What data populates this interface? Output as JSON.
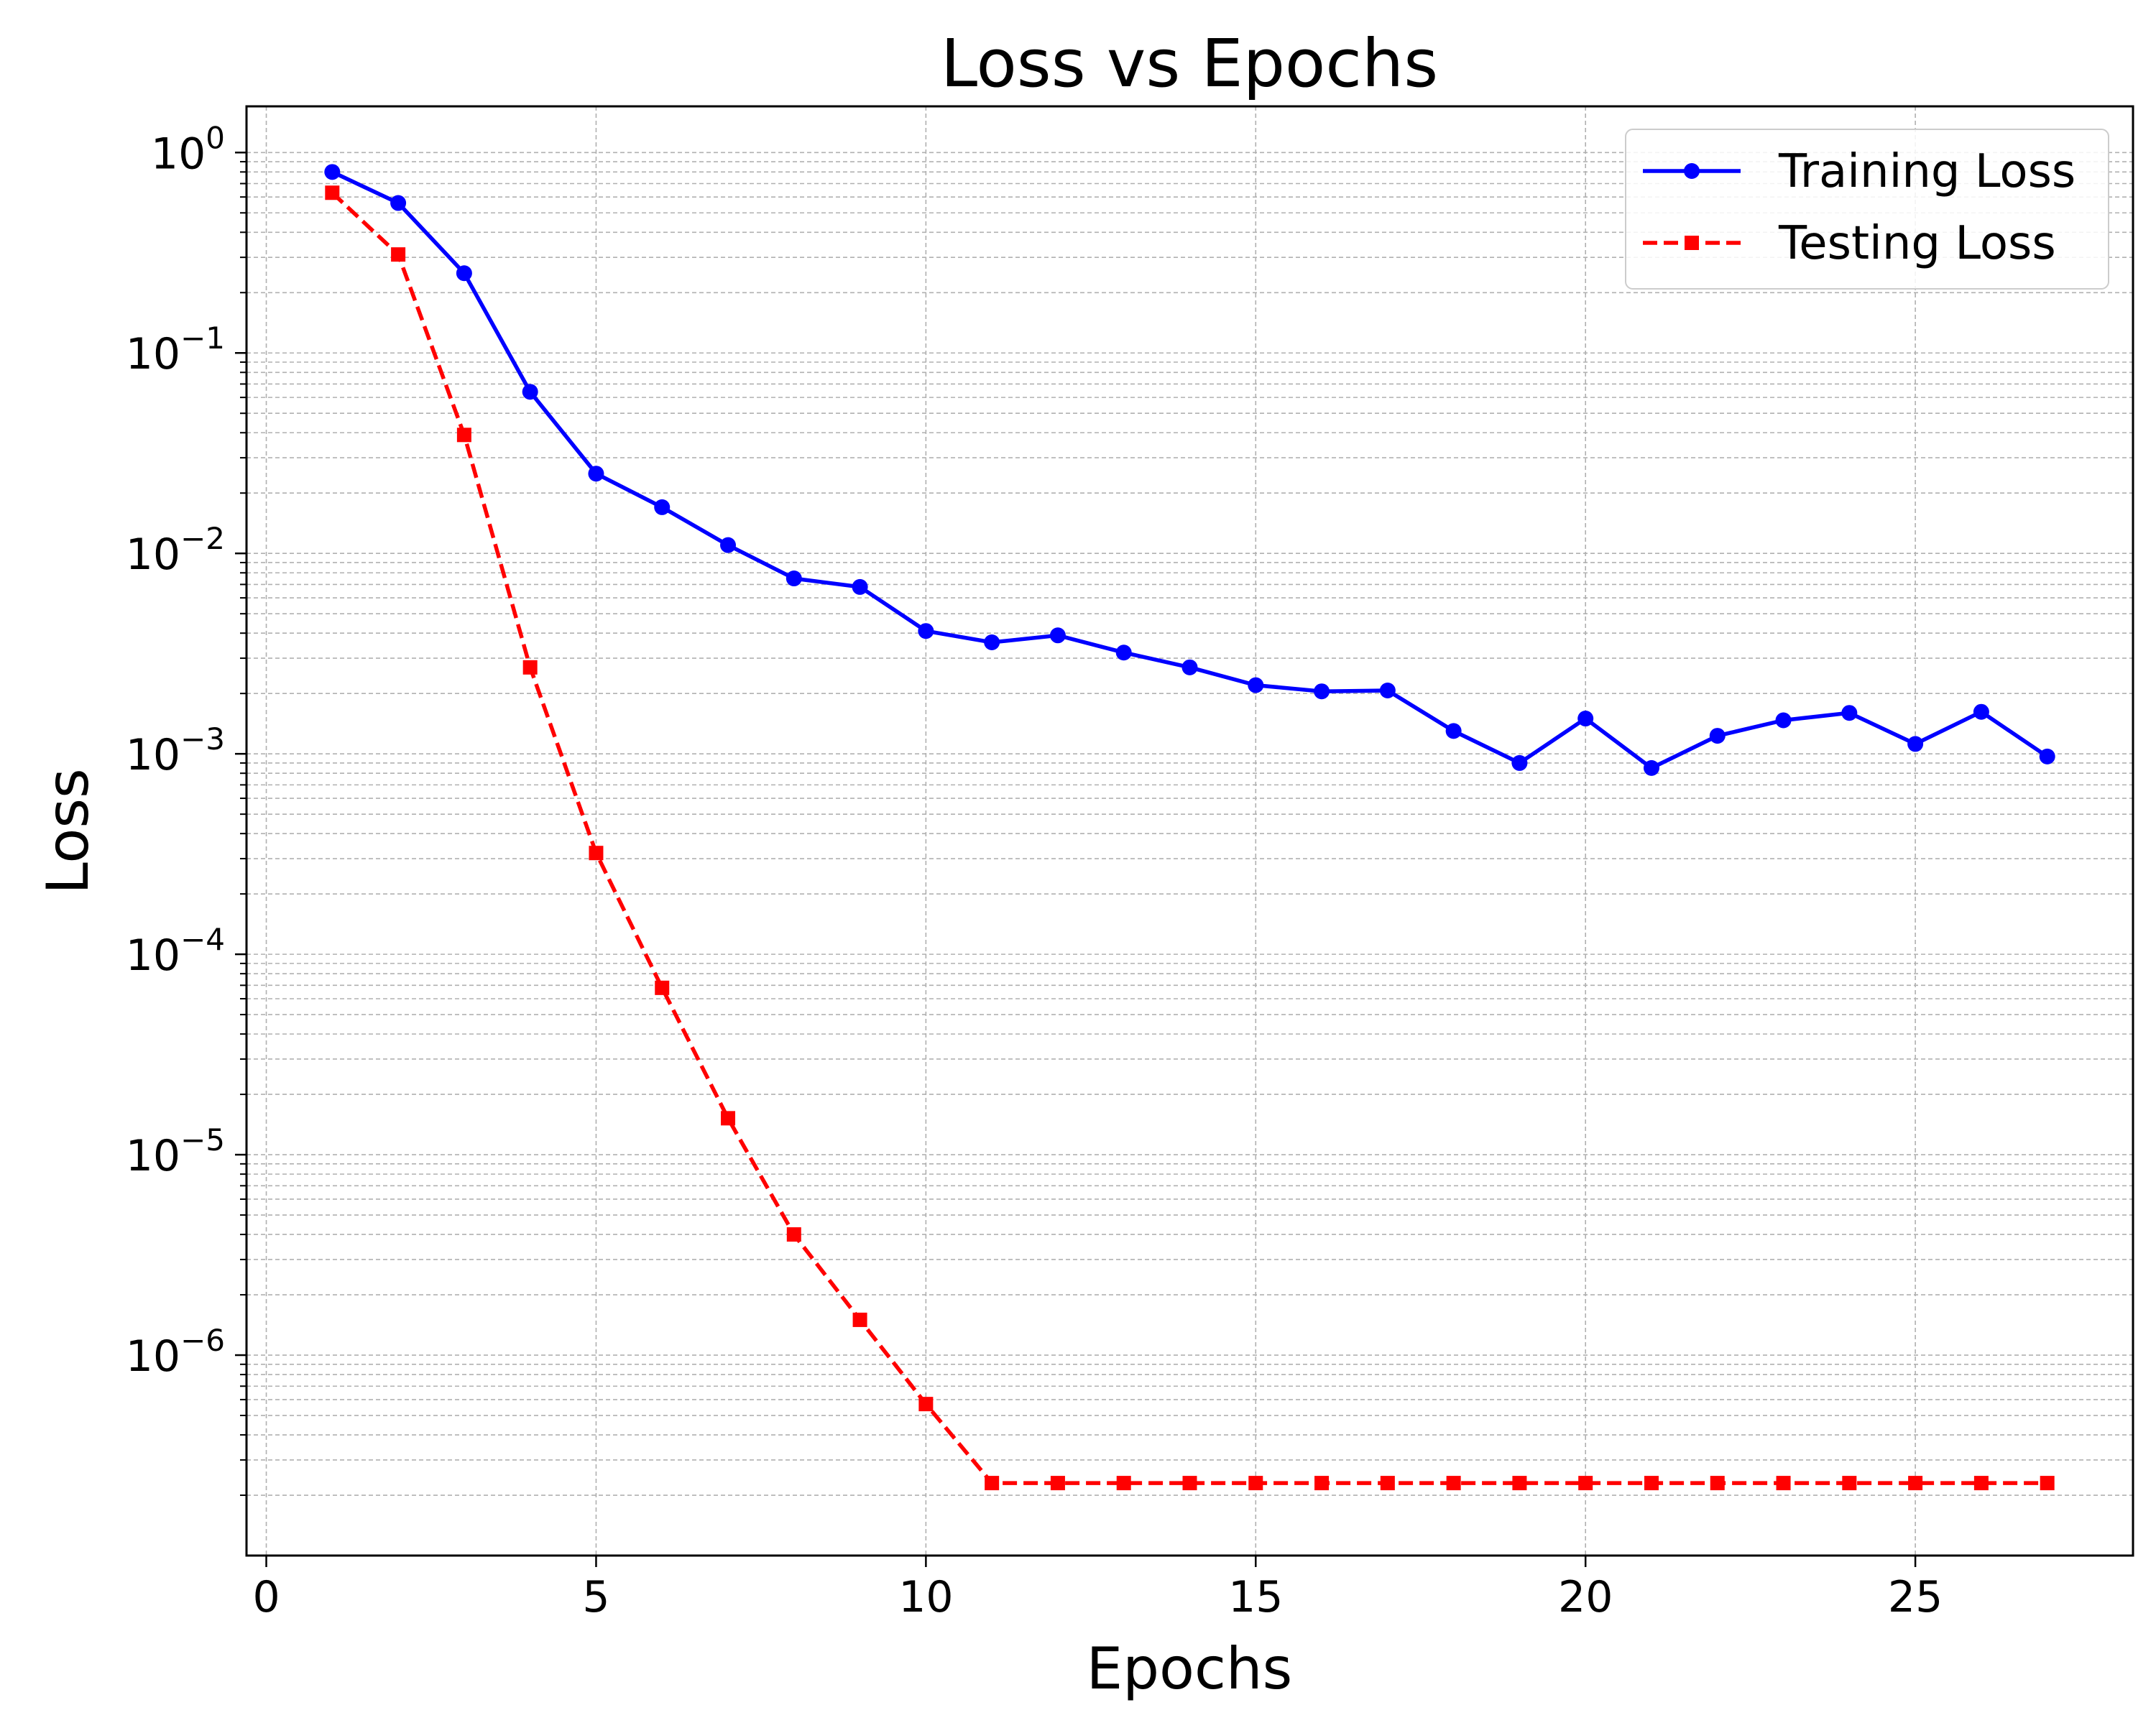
{
  "chart_data": {
    "type": "line",
    "title": "Loss vs Epochs",
    "xlabel": "Epochs",
    "ylabel": "Loss",
    "yscale": "log",
    "xlim": [
      -0.3,
      28.3
    ],
    "ylim": [
      1e-07,
      1.7
    ],
    "grid": true,
    "grid_minor": true,
    "legend_position": "top-right",
    "x_ticks": [
      0,
      5,
      10,
      15,
      20,
      25
    ],
    "x_tick_labels": [
      "0",
      "5",
      "10",
      "15",
      "20",
      "25"
    ],
    "y_ticks": [
      1,
      0.1,
      0.01,
      0.001,
      0.0001,
      1e-05,
      1e-06
    ],
    "y_tick_labels": [
      {
        "base": "10",
        "exp": "0"
      },
      {
        "base": "10",
        "exp": "−1"
      },
      {
        "base": "10",
        "exp": "−2"
      },
      {
        "base": "10",
        "exp": "−3"
      },
      {
        "base": "10",
        "exp": "−4"
      },
      {
        "base": "10",
        "exp": "−5"
      },
      {
        "base": "10",
        "exp": "−6"
      }
    ],
    "x": [
      1,
      2,
      3,
      4,
      5,
      6,
      7,
      8,
      9,
      10,
      11,
      12,
      13,
      14,
      15,
      16,
      17,
      18,
      19,
      20,
      21,
      22,
      23,
      24,
      25,
      26,
      27
    ],
    "series": [
      {
        "name": "Training Loss",
        "color": "#0000ff",
        "line_style": "solid",
        "marker": "circle",
        "values": [
          0.8,
          0.56,
          0.25,
          0.064,
          0.025,
          0.017,
          0.011,
          0.0075,
          0.0068,
          0.0041,
          0.0036,
          0.0039,
          0.0032,
          0.0027,
          0.0022,
          0.00205,
          0.00207,
          0.0013,
          0.0009,
          0.0015,
          0.00085,
          0.00123,
          0.00147,
          0.0016,
          0.00112,
          0.00162,
          0.00097
        ]
      },
      {
        "name": "Testing Loss",
        "color": "#ff0000",
        "line_style": "dashed",
        "marker": "square",
        "values": [
          0.63,
          0.31,
          0.039,
          0.0027,
          0.00032,
          6.8e-05,
          1.52e-05,
          4e-06,
          1.5e-06,
          5.7e-07,
          2.3e-07,
          2.3e-07,
          2.3e-07,
          2.3e-07,
          2.3e-07,
          2.3e-07,
          2.3e-07,
          2.3e-07,
          2.3e-07,
          2.3e-07,
          2.3e-07,
          2.3e-07,
          2.3e-07,
          2.3e-07,
          2.3e-07,
          2.3e-07,
          2.3e-07
        ]
      }
    ]
  }
}
